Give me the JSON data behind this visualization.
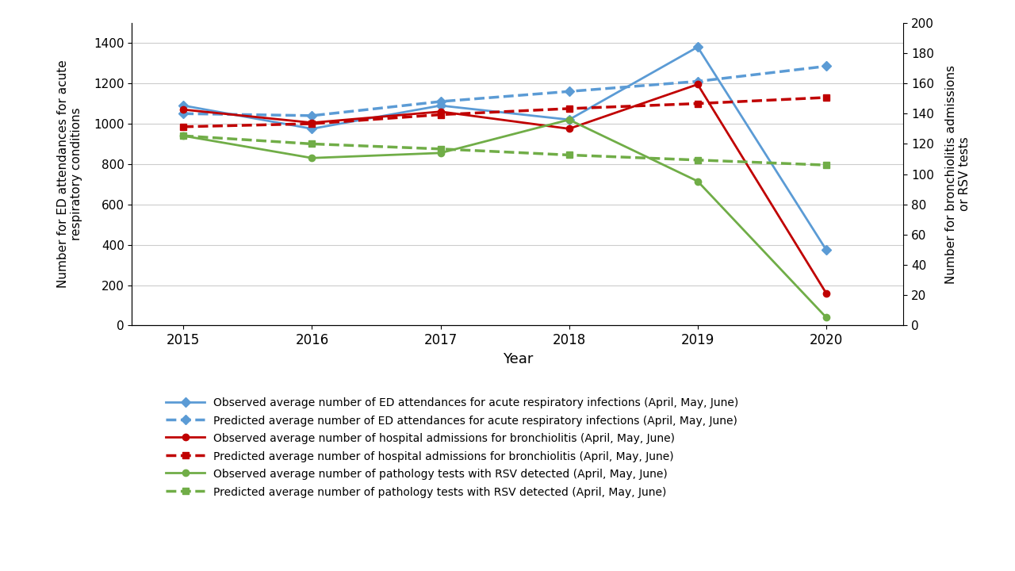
{
  "years": [
    2015,
    2016,
    2017,
    2018,
    2019,
    2020
  ],
  "ed_observed": [
    1090,
    975,
    1090,
    1020,
    1380,
    375
  ],
  "ed_predicted": [
    1050,
    1040,
    1110,
    1160,
    1210,
    1285
  ],
  "bronch_observed": [
    1070,
    1005,
    1060,
    975,
    1195,
    160
  ],
  "bronch_predicted": [
    985,
    1000,
    1045,
    1075,
    1100,
    1130
  ],
  "rsv_observed": [
    940,
    830,
    855,
    1020,
    715,
    40
  ],
  "rsv_predicted": [
    940,
    900,
    875,
    845,
    820,
    795
  ],
  "left_ylim": [
    0,
    1500
  ],
  "left_yticks": [
    0,
    200,
    400,
    600,
    800,
    1000,
    1200,
    1400
  ],
  "right_ylim": [
    0,
    200
  ],
  "right_yticks": [
    0,
    20,
    40,
    60,
    80,
    100,
    120,
    140,
    160,
    180,
    200
  ],
  "ylabel_left": "Number for ED attendances for acute\nrespiratory conditions",
  "ylabel_right": "Number for bronchiolitis admissions\nor RSV tests",
  "xlabel": "Year",
  "color_blue": "#5B9BD5",
  "color_red": "#C00000",
  "color_green": "#70AD47",
  "background_color": "#FFFFFF",
  "legend_labels": [
    "Observed average number of ED attendances for acute respiratory infections (April, May, June)",
    "Predicted average number of ED attendances for acute respiratory infections (April, May, June)",
    "Observed average number of hospital admissions for bronchiolitis (April, May, June)",
    "Predicted average number of hospital admissions for bronchiolitis (April, May, June)",
    "Observed average number of pathology tests with RSV detected (April, May, June)",
    "Predicted average number of pathology tests with RSV detected (April, May, June)"
  ]
}
